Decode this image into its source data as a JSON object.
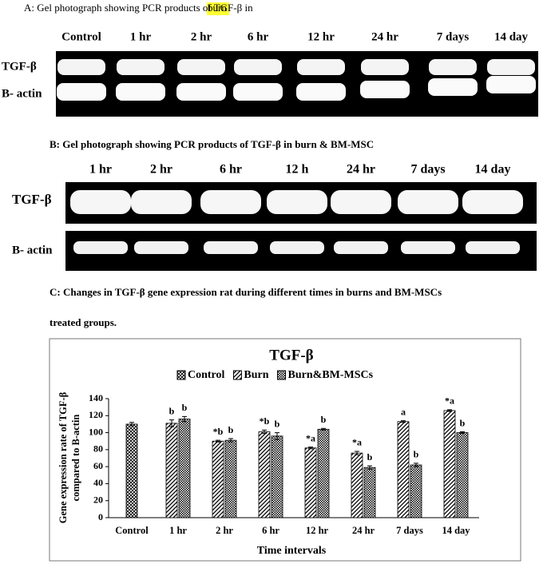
{
  "panel_a": {
    "caption": "A: Gel photograph showing PCR products of TGF-β in",
    "highlight": "burn",
    "lanes": [
      "Control",
      "1 hr",
      "2 hr",
      "6 hr",
      "12 hr",
      "24 hr",
      "7 days",
      "14 day"
    ],
    "rows": [
      "TGF-β",
      "B- actin"
    ]
  },
  "panel_b": {
    "caption": "B: Gel photograph showing PCR products of TGF-β in burn & BM-MSC",
    "lanes": [
      "1 hr",
      "2 hr",
      "6 hr",
      "12 h",
      "24 hr",
      "7 days",
      "14 day"
    ],
    "rows": [
      "TGF-β",
      "B- actin"
    ]
  },
  "panel_c": {
    "caption": [
      "C: Changes in TGF-β gene expression rat during different times in burns and BM-MSCs",
      "treated groups."
    ]
  },
  "chart_data": {
    "type": "bar",
    "title": "TGF-β",
    "ylabel": [
      "Gene expression rate of TGF-β",
      "compared to B-actin"
    ],
    "xlabel": "Time intervals",
    "categories": [
      "Control",
      "1 hr",
      "2 hr",
      "6 hr",
      "12 hr",
      "24 hr",
      "7 days",
      "14 day"
    ],
    "series": [
      {
        "name": "Control",
        "color": "#000000",
        "pattern": "crosshatch",
        "values": [
          110,
          null,
          null,
          null,
          null,
          null,
          null,
          null
        ],
        "errors": [
          2,
          null,
          null,
          null,
          null,
          null,
          null,
          null
        ],
        "annotations": [
          null,
          null,
          null,
          null,
          null,
          null,
          null,
          null
        ]
      },
      {
        "name": "Burn",
        "color": "#000000",
        "pattern": "diagonal",
        "values": [
          null,
          111,
          90,
          101,
          82,
          76,
          113,
          126
        ],
        "errors": [
          null,
          4,
          1,
          2,
          1,
          2,
          1,
          1
        ],
        "annotations": [
          null,
          "b",
          "*b",
          "*b",
          "*a",
          "*a",
          "a",
          "*a"
        ]
      },
      {
        "name": "Burn&BM-MSCs",
        "color": "#000000",
        "pattern": "checker",
        "values": [
          null,
          116,
          91,
          96,
          104,
          59,
          62,
          100
        ],
        "errors": [
          null,
          3,
          2,
          4,
          1,
          2,
          2,
          1
        ],
        "annotations": [
          null,
          "b",
          "b",
          "b",
          "b",
          "b",
          "b",
          "b"
        ]
      }
    ],
    "ylim": [
      0,
      140
    ],
    "yticks": [
      0,
      20,
      40,
      60,
      80,
      100,
      120,
      140
    ],
    "legend": "top",
    "grid": false
  }
}
